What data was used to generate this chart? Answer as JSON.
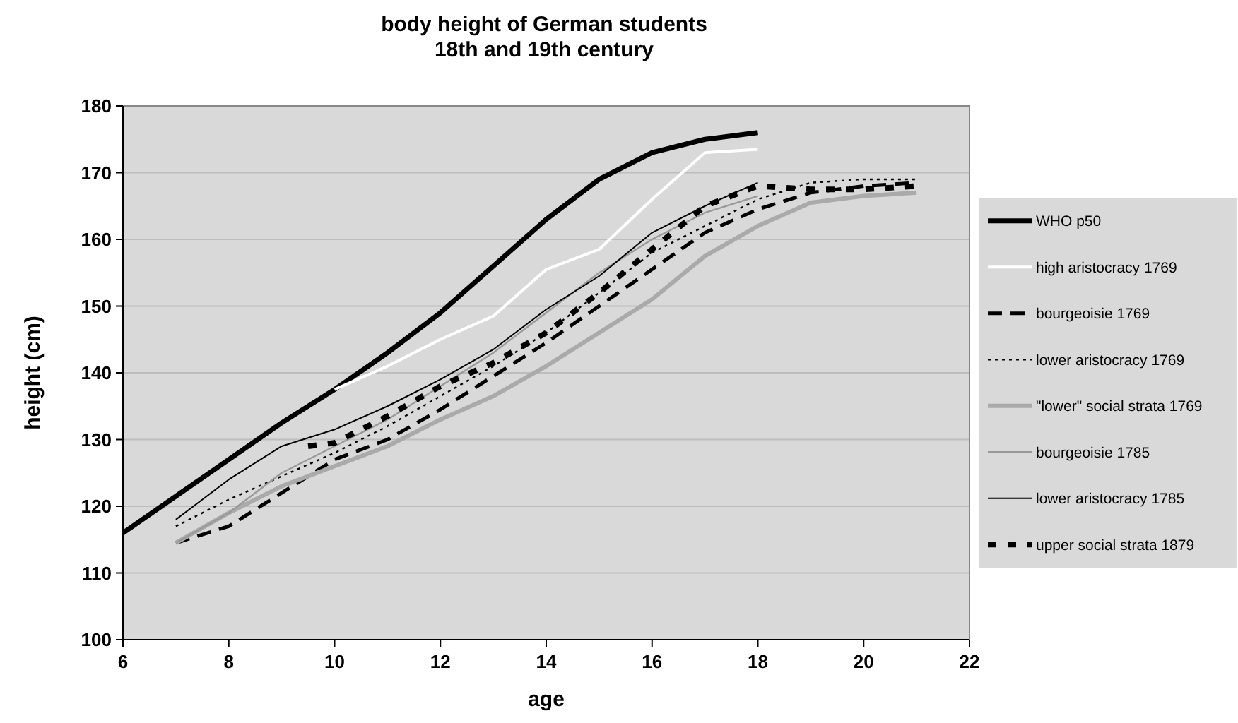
{
  "chart_data": {
    "type": "line",
    "title": "body height of German students\n18th and 19th century",
    "xlabel": "age",
    "ylabel": "height (cm)",
    "xlim": [
      6,
      22
    ],
    "xticks": [
      6,
      8,
      10,
      12,
      14,
      16,
      18,
      20,
      22
    ],
    "ylim": [
      100,
      180
    ],
    "yticks": [
      100,
      110,
      120,
      130,
      140,
      150,
      160,
      170,
      180
    ],
    "grid": "y",
    "legend": "right",
    "marker": "none",
    "series": [
      {
        "name": "WHO p50",
        "color": "#000000",
        "line_style": "solid",
        "x": [
          6,
          7,
          8,
          9,
          10,
          11,
          12,
          13,
          14,
          15,
          16,
          17,
          18
        ],
        "values": [
          116,
          121.5,
          127,
          132.5,
          137.5,
          143,
          149,
          156,
          163,
          169,
          173,
          175,
          176
        ]
      },
      {
        "name": "high aristocracy 1769",
        "color": "#ffffff",
        "line_style": "solid",
        "x": [
          10,
          11,
          12,
          13,
          14,
          15,
          16,
          17,
          18
        ],
        "values": [
          137.5,
          141,
          145,
          148.5,
          155.5,
          158.5,
          166,
          173,
          173.5
        ]
      },
      {
        "name": "bourgeoisie 1769",
        "color": "#000000",
        "line_style": "dashed",
        "x": [
          7,
          8,
          9,
          10,
          11,
          12,
          13,
          14,
          15,
          16,
          17,
          18,
          19,
          20,
          21
        ],
        "values": [
          114.5,
          117,
          122,
          127,
          130,
          134.5,
          139.5,
          144.5,
          150,
          155.5,
          161,
          164.5,
          167,
          168,
          168.5
        ]
      },
      {
        "name": "lower aristocracy 1769",
        "color": "#000000",
        "line_style": "dotted",
        "x": [
          7,
          8,
          9,
          10,
          11,
          12,
          13,
          14,
          15,
          16,
          17,
          18,
          19,
          20,
          21
        ],
        "values": [
          117,
          121,
          124.5,
          128,
          132,
          136.5,
          141,
          146,
          152,
          158,
          162,
          166,
          168.5,
          169,
          169
        ]
      },
      {
        "name": "\"lower\" social strata 1769",
        "color": "#aaaaaa",
        "line_style": "solid",
        "x": [
          7,
          8,
          9,
          10,
          11,
          12,
          13,
          14,
          15,
          16,
          17,
          18,
          19,
          20,
          21
        ],
        "values": [
          114.5,
          119,
          123,
          126,
          129,
          133,
          136.5,
          141,
          146,
          151,
          157.5,
          162,
          165.5,
          166.5,
          167
        ]
      },
      {
        "name": "bourgeoisie 1785",
        "color": "#999999",
        "line_style": "solid",
        "x": [
          7,
          8,
          9,
          10,
          11,
          12,
          13,
          14,
          15,
          16,
          17,
          18
        ],
        "values": [
          114.5,
          119,
          125,
          129,
          133,
          138,
          143,
          149,
          155,
          160,
          164,
          166.5
        ]
      },
      {
        "name": "lower aristocracy 1785",
        "color": "#000000",
        "line_style": "solid",
        "x": [
          7,
          8,
          9,
          10,
          11,
          12,
          13,
          14,
          15,
          16,
          17,
          18
        ],
        "values": [
          118,
          124,
          129,
          131.5,
          135,
          139,
          143.5,
          149.5,
          154.5,
          161,
          165,
          168.5
        ]
      },
      {
        "name": "upper social strata 1879",
        "color": "#000000",
        "line_style": "dashed",
        "x": [
          9.5,
          10,
          11,
          12,
          13,
          14,
          15,
          16,
          17,
          18,
          19,
          20,
          21
        ],
        "values": [
          129,
          129.5,
          133.5,
          138,
          141.5,
          146,
          152,
          158.5,
          165,
          168,
          167.5,
          167.5,
          168
        ]
      }
    ]
  }
}
